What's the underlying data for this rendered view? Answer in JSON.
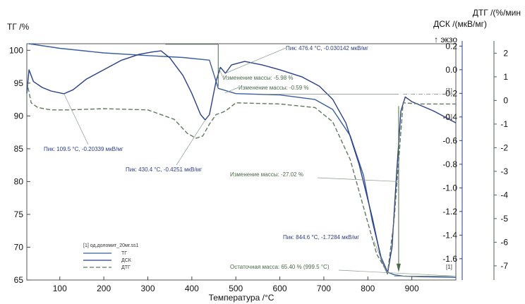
{
  "chart_data": {
    "type": "line",
    "x_axis": {
      "label": "Температура /°C",
      "range": [
        25,
        1000
      ],
      "ticks": [
        100,
        200,
        300,
        400,
        500,
        600,
        700,
        800,
        900
      ]
    },
    "y_left": {
      "label": "ТГ /%",
      "range": [
        65,
        101
      ],
      "ticks": [
        65,
        70,
        75,
        80,
        85,
        90,
        95,
        100
      ]
    },
    "y_right1": {
      "label": "ДСК /(мкВ/мг)",
      "exo_label": "↑ экзо",
      "range": [
        -1.78,
        0.22
      ],
      "ticks": [
        0.2,
        0.0,
        -0.2,
        -0.4,
        -0.6,
        -0.8,
        -1.0,
        -1.2,
        -1.4,
        -1.6
      ]
    },
    "y_right2": {
      "label": "ДТГ /(%/мин",
      "range": [
        -7.6,
        2.4
      ],
      "ticks": [
        2,
        1,
        0,
        -1,
        -2,
        -3,
        -4,
        -5,
        -6,
        -7
      ]
    },
    "series": [
      {
        "name": "ТГ",
        "axis": "left",
        "color": "#3a5f9c",
        "dash": "none",
        "x": [
          30,
          100,
          200,
          300,
          380,
          440,
          460,
          500,
          600,
          680,
          720,
          760,
          790,
          810,
          830,
          845,
          860,
          880,
          920,
          1000
        ],
        "y": [
          101.0,
          100.3,
          99.6,
          99.2,
          98.9,
          98.5,
          94.2,
          93.4,
          93.2,
          92.5,
          91.0,
          87.0,
          81.0,
          74.0,
          68.5,
          66.2,
          65.8,
          65.6,
          65.5,
          65.4
        ]
      },
      {
        "name": "ДСК",
        "axis": "right1",
        "color": "#2b3f8a",
        "dash": "none",
        "x": [
          25,
          30,
          40,
          60,
          80,
          109.5,
          130,
          160,
          200,
          240,
          280,
          310,
          330,
          350,
          380,
          400,
          420,
          430.4,
          440,
          455,
          465,
          476.4,
          490,
          520,
          560,
          600,
          650,
          690,
          720,
          750,
          780,
          810,
          830,
          844.6,
          855,
          865,
          875,
          885,
          900,
          950,
          1000
        ],
        "y": [
          -0.2,
          0.0,
          -0.1,
          -0.15,
          -0.18,
          -0.203,
          -0.17,
          -0.08,
          0.0,
          0.08,
          0.13,
          0.15,
          0.16,
          0.1,
          -0.05,
          -0.2,
          -0.38,
          -0.425,
          -0.38,
          -0.1,
          0.02,
          -0.03,
          0.04,
          0.07,
          0.04,
          0.0,
          -0.06,
          -0.14,
          -0.25,
          -0.45,
          -0.8,
          -1.25,
          -1.6,
          -1.728,
          -1.5,
          -0.9,
          -0.35,
          -0.23,
          -0.27,
          -0.35,
          -0.45
        ]
      },
      {
        "name": "ДТГ",
        "axis": "right2",
        "color": "#5f7a5f",
        "dash": "6,3",
        "x": [
          25,
          35,
          50,
          80,
          120,
          200,
          300,
          360,
          390,
          410,
          425,
          440,
          455,
          470,
          480,
          500,
          600,
          680,
          720,
          760,
          790,
          820,
          845,
          860,
          880,
          920,
          1000
        ],
        "y": [
          0.8,
          -0.1,
          -0.3,
          -0.4,
          -0.4,
          -0.35,
          -0.4,
          -0.8,
          -1.4,
          -1.6,
          -1.5,
          -1.0,
          -0.6,
          -0.5,
          -0.4,
          -0.1,
          -0.15,
          -0.3,
          -0.9,
          -2.5,
          -4.5,
          -6.5,
          -7.3,
          -5.0,
          -0.1,
          -0.15,
          -0.15
        ]
      }
    ],
    "annotations": [
      {
        "text": "Пик: 476.4 °C, -0.030142 мкВ/мг",
        "color": "#2b3f8a"
      },
      {
        "text": "Изменение массы: -5.98 %",
        "color": "#4a6a4a"
      },
      {
        "text": "Изменение массы: -0.59 %",
        "color": "#4a6a4a"
      },
      {
        "text": "Пик: 109.5 °C, -0.20339 мкВ/мг",
        "color": "#2b3f8a"
      },
      {
        "text": "Пик: 430.4 °C, -0.4251 мкВ/мг",
        "color": "#2b3f8a"
      },
      {
        "text": "Изменение массы: -27.02 %",
        "color": "#4a6a4a"
      },
      {
        "text": "Пик: 844.6 °C, -1.7284 мкВ/мг",
        "color": "#2b3f8a"
      },
      {
        "text": "Остаточная масса: 65.40 % (999.5 °C)",
        "color": "#4a6a4a"
      }
    ],
    "markers": [
      "[1]",
      "[1]",
      "[1]"
    ],
    "legend": {
      "title": "[1] од.доломит_20мг.ss1",
      "entries": [
        "ТГ",
        "ДСК",
        "ДТГ"
      ]
    }
  }
}
